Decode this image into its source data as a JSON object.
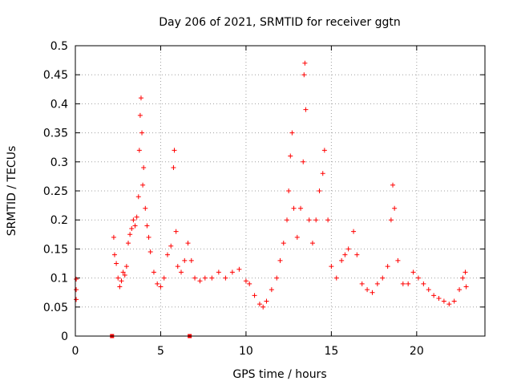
{
  "chart_data": {
    "type": "scatter",
    "title": "Day 206 of 2021, SRMTID for receiver ggtn",
    "xlabel": "GPS time / hours",
    "ylabel": "SRMTID / TECUs",
    "xlim": [
      0,
      24
    ],
    "ylim": [
      0,
      0.5
    ],
    "x_ticks": [
      0,
      5,
      10,
      15,
      20
    ],
    "y_ticks": [
      0,
      0.05,
      0.1,
      0.15,
      0.2,
      0.25,
      0.3,
      0.35,
      0.4,
      0.45,
      0.5
    ],
    "x_tick_labels": [
      "0",
      "5",
      "10",
      "15",
      "20"
    ],
    "y_tick_labels": [
      "0",
      "0.05",
      "0.1",
      "0.15",
      "0.2",
      "0.25",
      "0.3",
      "0.35",
      "0.4",
      "0.45",
      "0.5"
    ],
    "grid": true,
    "marker": "+",
    "series_color": "#ff0000",
    "series": [
      {
        "name": "SRMTID",
        "points": [
          [
            0.05,
            0.098
          ],
          [
            0.05,
            0.08
          ],
          [
            0.05,
            0.063
          ],
          [
            2.25,
            0.17
          ],
          [
            2.3,
            0.14
          ],
          [
            2.4,
            0.125
          ],
          [
            2.5,
            0.1
          ],
          [
            2.6,
            0.085
          ],
          [
            2.7,
            0.095
          ],
          [
            2.8,
            0.11
          ],
          [
            2.9,
            0.105
          ],
          [
            3.0,
            0.12
          ],
          [
            3.1,
            0.16
          ],
          [
            3.2,
            0.175
          ],
          [
            3.3,
            0.185
          ],
          [
            3.4,
            0.2
          ],
          [
            3.5,
            0.19
          ],
          [
            3.6,
            0.205
          ],
          [
            3.7,
            0.24
          ],
          [
            3.75,
            0.32
          ],
          [
            3.8,
            0.38
          ],
          [
            3.85,
            0.41
          ],
          [
            3.9,
            0.35
          ],
          [
            3.95,
            0.26
          ],
          [
            4.0,
            0.29
          ],
          [
            4.1,
            0.22
          ],
          [
            4.2,
            0.19
          ],
          [
            4.3,
            0.17
          ],
          [
            4.4,
            0.145
          ],
          [
            4.6,
            0.11
          ],
          [
            4.8,
            0.09
          ],
          [
            5.0,
            0.085
          ],
          [
            5.2,
            0.1
          ],
          [
            5.4,
            0.14
          ],
          [
            5.6,
            0.155
          ],
          [
            5.75,
            0.29
          ],
          [
            5.8,
            0.32
          ],
          [
            5.9,
            0.18
          ],
          [
            6.0,
            0.12
          ],
          [
            6.2,
            0.11
          ],
          [
            6.4,
            0.13
          ],
          [
            6.6,
            0.16
          ],
          [
            6.8,
            0.13
          ],
          [
            7.0,
            0.1
          ],
          [
            7.3,
            0.095
          ],
          [
            7.6,
            0.1
          ],
          [
            8.0,
            0.1
          ],
          [
            8.4,
            0.11
          ],
          [
            8.8,
            0.1
          ],
          [
            9.2,
            0.11
          ],
          [
            9.6,
            0.115
          ],
          [
            10.0,
            0.095
          ],
          [
            10.2,
            0.09
          ],
          [
            10.5,
            0.07
          ],
          [
            10.8,
            0.055
          ],
          [
            11.0,
            0.05
          ],
          [
            11.2,
            0.06
          ],
          [
            11.5,
            0.08
          ],
          [
            11.8,
            0.1
          ],
          [
            12.0,
            0.13
          ],
          [
            12.2,
            0.16
          ],
          [
            12.4,
            0.2
          ],
          [
            12.5,
            0.25
          ],
          [
            12.6,
            0.31
          ],
          [
            12.7,
            0.35
          ],
          [
            12.8,
            0.22
          ],
          [
            13.0,
            0.17
          ],
          [
            13.2,
            0.22
          ],
          [
            13.35,
            0.3
          ],
          [
            13.4,
            0.45
          ],
          [
            13.45,
            0.47
          ],
          [
            13.5,
            0.39
          ],
          [
            13.7,
            0.2
          ],
          [
            13.9,
            0.16
          ],
          [
            14.1,
            0.2
          ],
          [
            14.3,
            0.25
          ],
          [
            14.5,
            0.28
          ],
          [
            14.6,
            0.32
          ],
          [
            14.8,
            0.2
          ],
          [
            15.0,
            0.12
          ],
          [
            15.3,
            0.1
          ],
          [
            15.6,
            0.13
          ],
          [
            15.8,
            0.14
          ],
          [
            16.0,
            0.15
          ],
          [
            16.3,
            0.18
          ],
          [
            16.5,
            0.14
          ],
          [
            16.8,
            0.09
          ],
          [
            17.1,
            0.08
          ],
          [
            17.4,
            0.075
          ],
          [
            17.7,
            0.09
          ],
          [
            18.0,
            0.1
          ],
          [
            18.3,
            0.12
          ],
          [
            18.5,
            0.2
          ],
          [
            18.6,
            0.26
          ],
          [
            18.7,
            0.22
          ],
          [
            18.9,
            0.13
          ],
          [
            19.2,
            0.09
          ],
          [
            19.5,
            0.09
          ],
          [
            19.8,
            0.11
          ],
          [
            20.1,
            0.1
          ],
          [
            20.4,
            0.09
          ],
          [
            20.7,
            0.08
          ],
          [
            21.0,
            0.07
          ],
          [
            21.3,
            0.065
          ],
          [
            21.6,
            0.06
          ],
          [
            21.9,
            0.055
          ],
          [
            22.2,
            0.06
          ],
          [
            22.5,
            0.08
          ],
          [
            22.7,
            0.1
          ],
          [
            22.85,
            0.11
          ],
          [
            22.9,
            0.085
          ]
        ]
      }
    ],
    "gap_markers": [
      2.15,
      6.7
    ]
  }
}
